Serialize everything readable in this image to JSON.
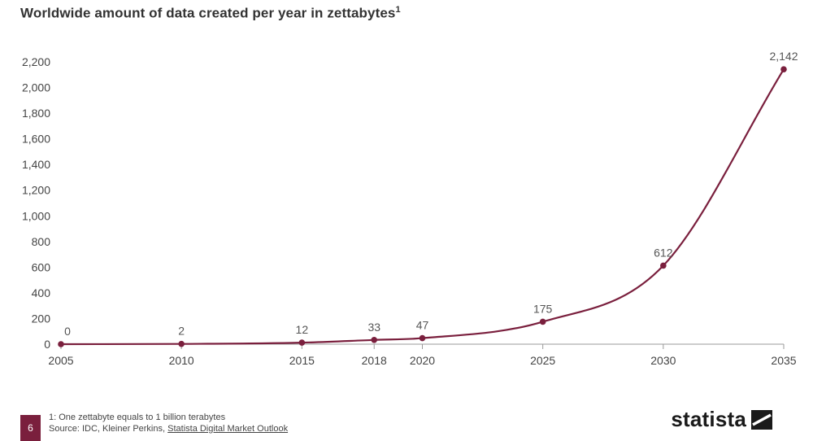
{
  "title": "Worldwide amount of data created per year in zettabytes",
  "title_sup": "1",
  "chart_data": {
    "type": "line",
    "x": [
      2005,
      2010,
      2015,
      2018,
      2020,
      2025,
      2030,
      2035
    ],
    "x_tick_labels": [
      "2005",
      "2010",
      "2015",
      "2018",
      "2020",
      "2025",
      "2030",
      "2035"
    ],
    "series": [
      {
        "values": [
          0,
          2,
          12,
          33,
          47,
          175,
          612,
          2142
        ],
        "data_labels": [
          "0",
          "2",
          "12",
          "33",
          "47",
          "175",
          "612",
          "2,142"
        ],
        "color": "#7a1f3d"
      }
    ],
    "ylim": [
      0,
      2200
    ],
    "y_ticks": [
      0,
      200,
      400,
      600,
      800,
      1000,
      1200,
      1400,
      1600,
      1800,
      2000,
      2200
    ],
    "y_tick_labels": [
      "0",
      "200",
      "400",
      "600",
      "800",
      "1,000",
      "1,200",
      "1,400",
      "1,600",
      "1,800",
      "2,000",
      "2,200"
    ],
    "xlabel": "",
    "ylabel": "",
    "grid": false
  },
  "footer": {
    "page_number": "6",
    "footnote": "1: One zettabyte equals to 1 billion terabytes",
    "source_prefix": "Source: IDC, Kleiner Perkins, ",
    "source_link": "Statista Digital Market Outlook",
    "brand": "statista",
    "brand_icon": "statista-logo-icon"
  },
  "colors": {
    "line": "#7a1f3d",
    "badge": "#7a1f3d",
    "axis": "#999999"
  }
}
